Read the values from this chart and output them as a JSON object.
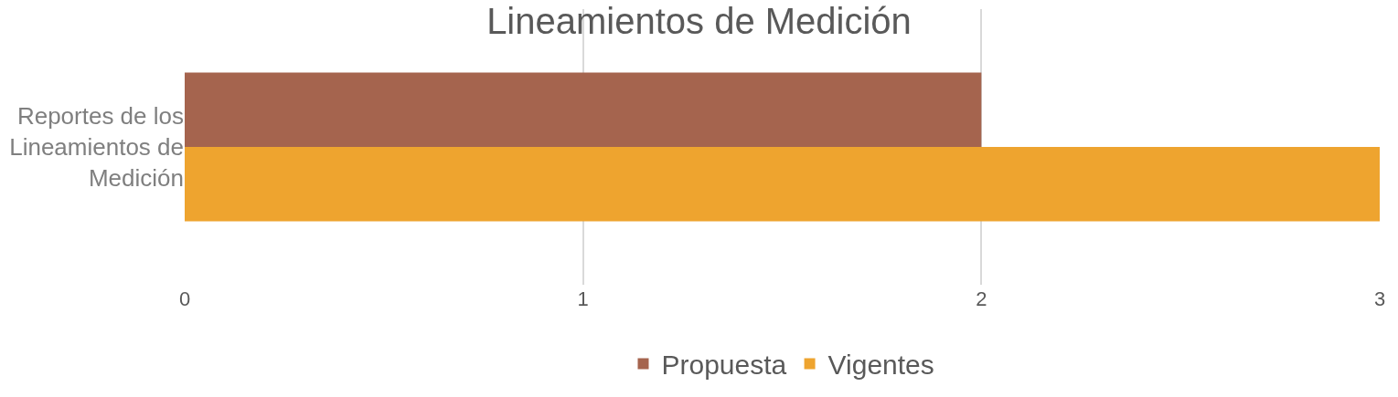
{
  "chart_data": {
    "type": "bar",
    "orientation": "horizontal",
    "title": "Lineamientos de Medición",
    "categories": [
      "Reportes de los Lineamientos de Medición"
    ],
    "series": [
      {
        "name": "Propuesta",
        "color": "#a5644e",
        "values": [
          2
        ]
      },
      {
        "name": "Vigentes",
        "color": "#eea42f",
        "values": [
          3
        ]
      }
    ],
    "xlim": [
      0,
      3
    ],
    "xticks": [
      0,
      1,
      2,
      3
    ],
    "grid": "x",
    "legend": "bottom"
  }
}
